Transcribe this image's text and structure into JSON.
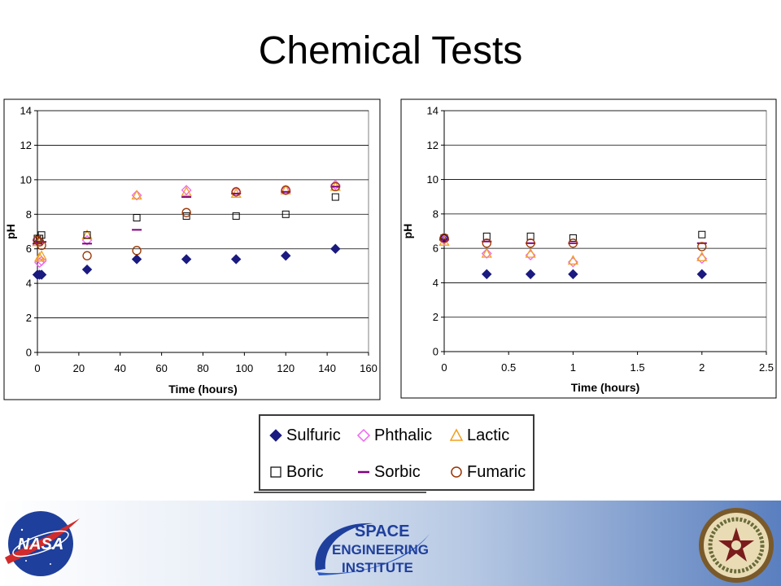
{
  "slide": {
    "title": "Chemical Tests"
  },
  "legend": {
    "items": [
      {
        "name": "Sulfuric",
        "marker": "diamond-filled",
        "color": "#1a1a80"
      },
      {
        "name": "Phthalic",
        "marker": "diamond-open",
        "color": "#ee66ee"
      },
      {
        "name": "Lactic",
        "marker": "triangle-open",
        "color": "#f0a020"
      },
      {
        "name": "Boric",
        "marker": "square-open",
        "color": "#000000"
      },
      {
        "name": "Sorbic",
        "marker": "dash",
        "color": "#800080"
      },
      {
        "name": "Fumaric",
        "marker": "circle-open",
        "color": "#993300"
      }
    ]
  },
  "footer": {
    "left_logo": {
      "icon": "nasa-meatball-logo",
      "text": "NASA"
    },
    "center_logo": {
      "icon": "sei-logo",
      "lines": [
        "SPACE",
        "ENGINEERING",
        "INSTITUTE"
      ]
    },
    "right_logo": {
      "icon": "texas-am-seal"
    }
  },
  "chart_data": [
    {
      "type": "scatter",
      "xlabel": "Time (hours)",
      "ylabel": "pH",
      "xlim": [
        0,
        160
      ],
      "ylim": [
        0,
        14
      ],
      "xticks": [
        0,
        20,
        40,
        60,
        80,
        100,
        120,
        140,
        160
      ],
      "yticks": [
        0,
        2,
        4,
        6,
        8,
        10,
        12,
        14
      ],
      "grid": "horizontal",
      "series": [
        {
          "name": "Sulfuric",
          "points": [
            [
              0,
              4.5
            ],
            [
              1,
              4.5
            ],
            [
              2,
              4.5
            ],
            [
              24,
              4.8
            ],
            [
              48,
              5.4
            ],
            [
              72,
              5.4
            ],
            [
              96,
              5.4
            ],
            [
              120,
              5.6
            ],
            [
              144,
              6.0
            ]
          ]
        },
        {
          "name": "Phthalic",
          "points": [
            [
              0,
              6.5
            ],
            [
              1,
              5.2
            ],
            [
              2,
              5.3
            ],
            [
              24,
              6.5
            ],
            [
              48,
              9.1
            ],
            [
              72,
              9.4
            ],
            [
              96,
              9.3
            ],
            [
              120,
              9.4
            ],
            [
              144,
              9.7
            ]
          ]
        },
        {
          "name": "Lactic",
          "points": [
            [
              0,
              6.4
            ],
            [
              1,
              5.5
            ],
            [
              2,
              5.6
            ],
            [
              24,
              6.8
            ],
            [
              48,
              9.1
            ],
            [
              72,
              9.3
            ],
            [
              96,
              9.2
            ],
            [
              120,
              9.4
            ],
            [
              144,
              9.6
            ]
          ]
        },
        {
          "name": "Boric",
          "points": [
            [
              0,
              6.6
            ],
            [
              1,
              6.6
            ],
            [
              2,
              6.8
            ],
            [
              24,
              6.8
            ],
            [
              48,
              7.8
            ],
            [
              72,
              7.9
            ],
            [
              96,
              7.9
            ],
            [
              120,
              8.0
            ],
            [
              144,
              9.0
            ]
          ]
        },
        {
          "name": "Sorbic",
          "points": [
            [
              0,
              6.3
            ],
            [
              1,
              6.4
            ],
            [
              2,
              6.4
            ],
            [
              24,
              6.3
            ],
            [
              48,
              7.1
            ],
            [
              72,
              9.0
            ],
            [
              96,
              9.2
            ],
            [
              120,
              9.3
            ],
            [
              144,
              9.6
            ]
          ]
        },
        {
          "name": "Fumaric",
          "points": [
            [
              0,
              6.5
            ],
            [
              1,
              6.4
            ],
            [
              2,
              6.2
            ],
            [
              24,
              5.6
            ],
            [
              48,
              5.9
            ],
            [
              72,
              8.1
            ],
            [
              96,
              9.3
            ],
            [
              120,
              9.4
            ],
            [
              144,
              9.6
            ]
          ]
        }
      ]
    },
    {
      "type": "scatter",
      "xlabel": "Time (hours)",
      "ylabel": "pH",
      "xlim": [
        0,
        2.5
      ],
      "ylim": [
        0,
        14
      ],
      "xticks": [
        0,
        0.5,
        1,
        1.5,
        2,
        2.5
      ],
      "yticks": [
        0,
        2,
        4,
        6,
        8,
        10,
        12,
        14
      ],
      "grid": "horizontal",
      "series": [
        {
          "name": "Sulfuric",
          "points": [
            [
              0,
              6.6
            ],
            [
              0.33,
              4.5
            ],
            [
              0.67,
              4.5
            ],
            [
              1,
              4.5
            ],
            [
              2,
              4.5
            ]
          ]
        },
        {
          "name": "Phthalic",
          "points": [
            [
              0,
              6.5
            ],
            [
              0.33,
              5.7
            ],
            [
              0.67,
              5.6
            ],
            [
              1,
              5.2
            ],
            [
              2,
              5.4
            ]
          ]
        },
        {
          "name": "Lactic",
          "points": [
            [
              0,
              6.4
            ],
            [
              0.33,
              5.7
            ],
            [
              0.67,
              5.7
            ],
            [
              1,
              5.3
            ],
            [
              2,
              5.5
            ]
          ]
        },
        {
          "name": "Boric",
          "points": [
            [
              0,
              6.6
            ],
            [
              0.33,
              6.7
            ],
            [
              0.67,
              6.7
            ],
            [
              1,
              6.6
            ],
            [
              2,
              6.8
            ]
          ]
        },
        {
          "name": "Sorbic",
          "points": [
            [
              0,
              6.5
            ],
            [
              0.33,
              6.4
            ],
            [
              0.67,
              6.3
            ],
            [
              1,
              6.3
            ],
            [
              2,
              6.3
            ]
          ]
        },
        {
          "name": "Fumaric",
          "points": [
            [
              0,
              6.6
            ],
            [
              0.33,
              6.3
            ],
            [
              0.67,
              6.3
            ],
            [
              1,
              6.3
            ],
            [
              2,
              6.1
            ]
          ]
        }
      ]
    }
  ]
}
